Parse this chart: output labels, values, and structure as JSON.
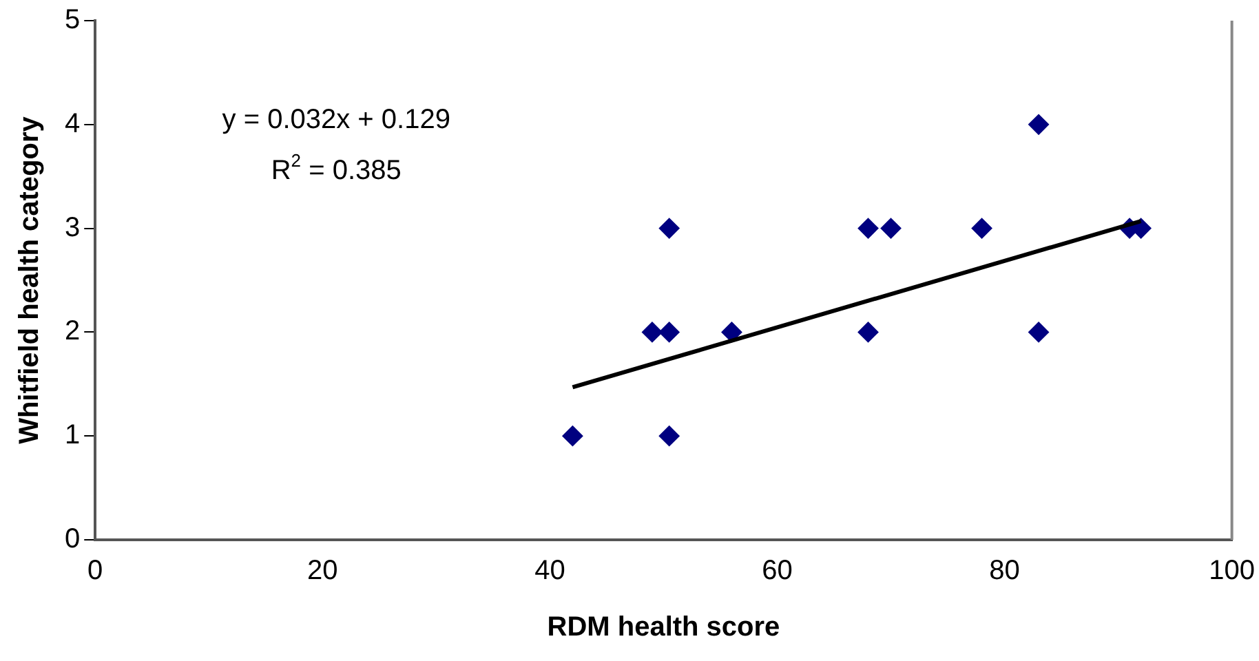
{
  "chart_data": {
    "type": "scatter",
    "xlabel": "RDM health score",
    "ylabel": "Whitfield health category",
    "xlim": [
      0,
      100
    ],
    "xticks": [
      0,
      20,
      40,
      60,
      80,
      100
    ],
    "ylim": [
      0,
      5
    ],
    "yticks": [
      0,
      1,
      2,
      3,
      4,
      5
    ],
    "grid": false,
    "legend": false,
    "marker": "diamond",
    "annotations": [
      "y = 0.032x + 0.129",
      "R$^{2}$ = 0.385"
    ],
    "series": [
      {
        "color": "#000080",
        "x": [
          42,
          49,
          50.5,
          50.5,
          50.5,
          56,
          68,
          68,
          70,
          78,
          83,
          83,
          91,
          92
        ],
        "values": [
          1,
          2,
          2,
          3,
          1,
          2,
          3,
          2,
          3,
          3,
          4,
          2,
          3,
          3
        ]
      },
      {
        "type": "line",
        "color": "#000000",
        "marker": "none",
        "x": [
          42,
          92
        ],
        "values": [
          1.47,
          3.07
        ]
      }
    ]
  }
}
